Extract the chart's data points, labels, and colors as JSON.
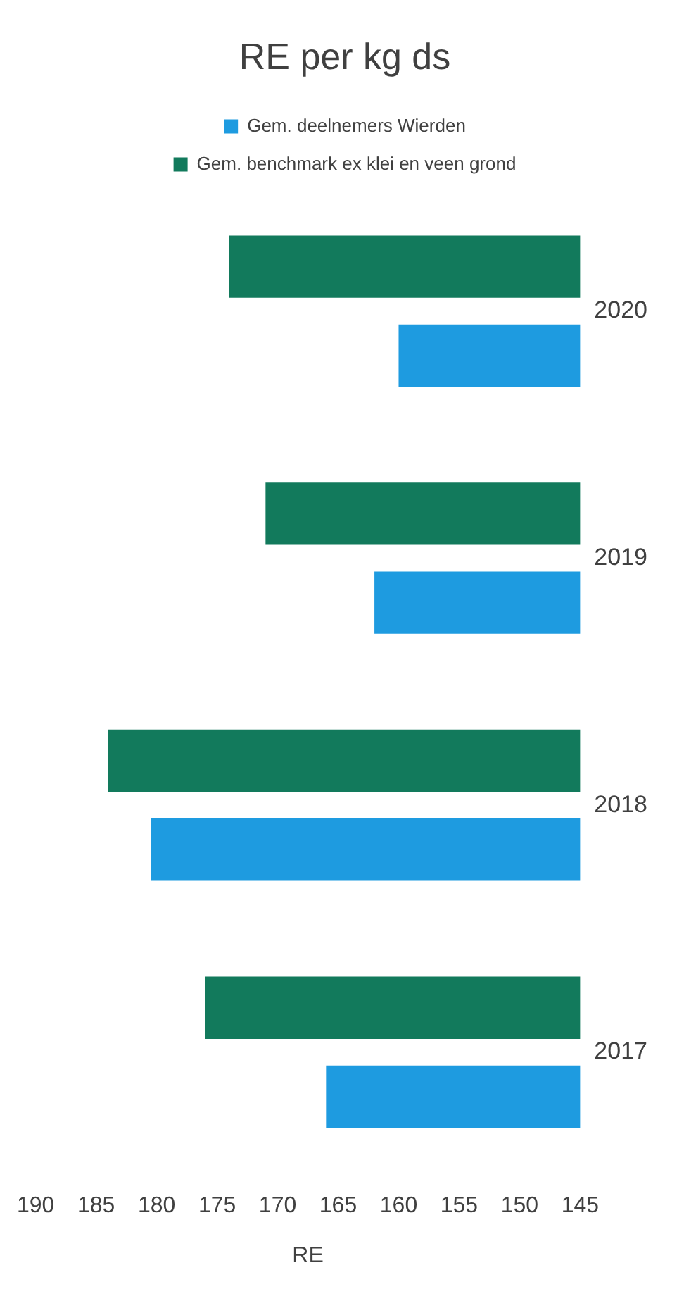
{
  "chart_data": {
    "type": "bar",
    "orientation": "horizontal",
    "title": "RE per kg ds",
    "xlabel": "RE",
    "categories": [
      "2020",
      "2019",
      "2018",
      "2017"
    ],
    "series": [
      {
        "name": "Gem. deelnemers Wierden",
        "color": "#1e9be0",
        "values": [
          160,
          162,
          180.5,
          166
        ]
      },
      {
        "name": "Gem. benchmark ex klei en veen grond",
        "color": "#127a5c",
        "values": [
          174,
          171,
          184,
          176
        ]
      }
    ],
    "xlim": [
      190,
      145
    ],
    "xticks": [
      190,
      185,
      180,
      175,
      170,
      165,
      160,
      155,
      150,
      145
    ],
    "grid": false,
    "legend": "top"
  }
}
